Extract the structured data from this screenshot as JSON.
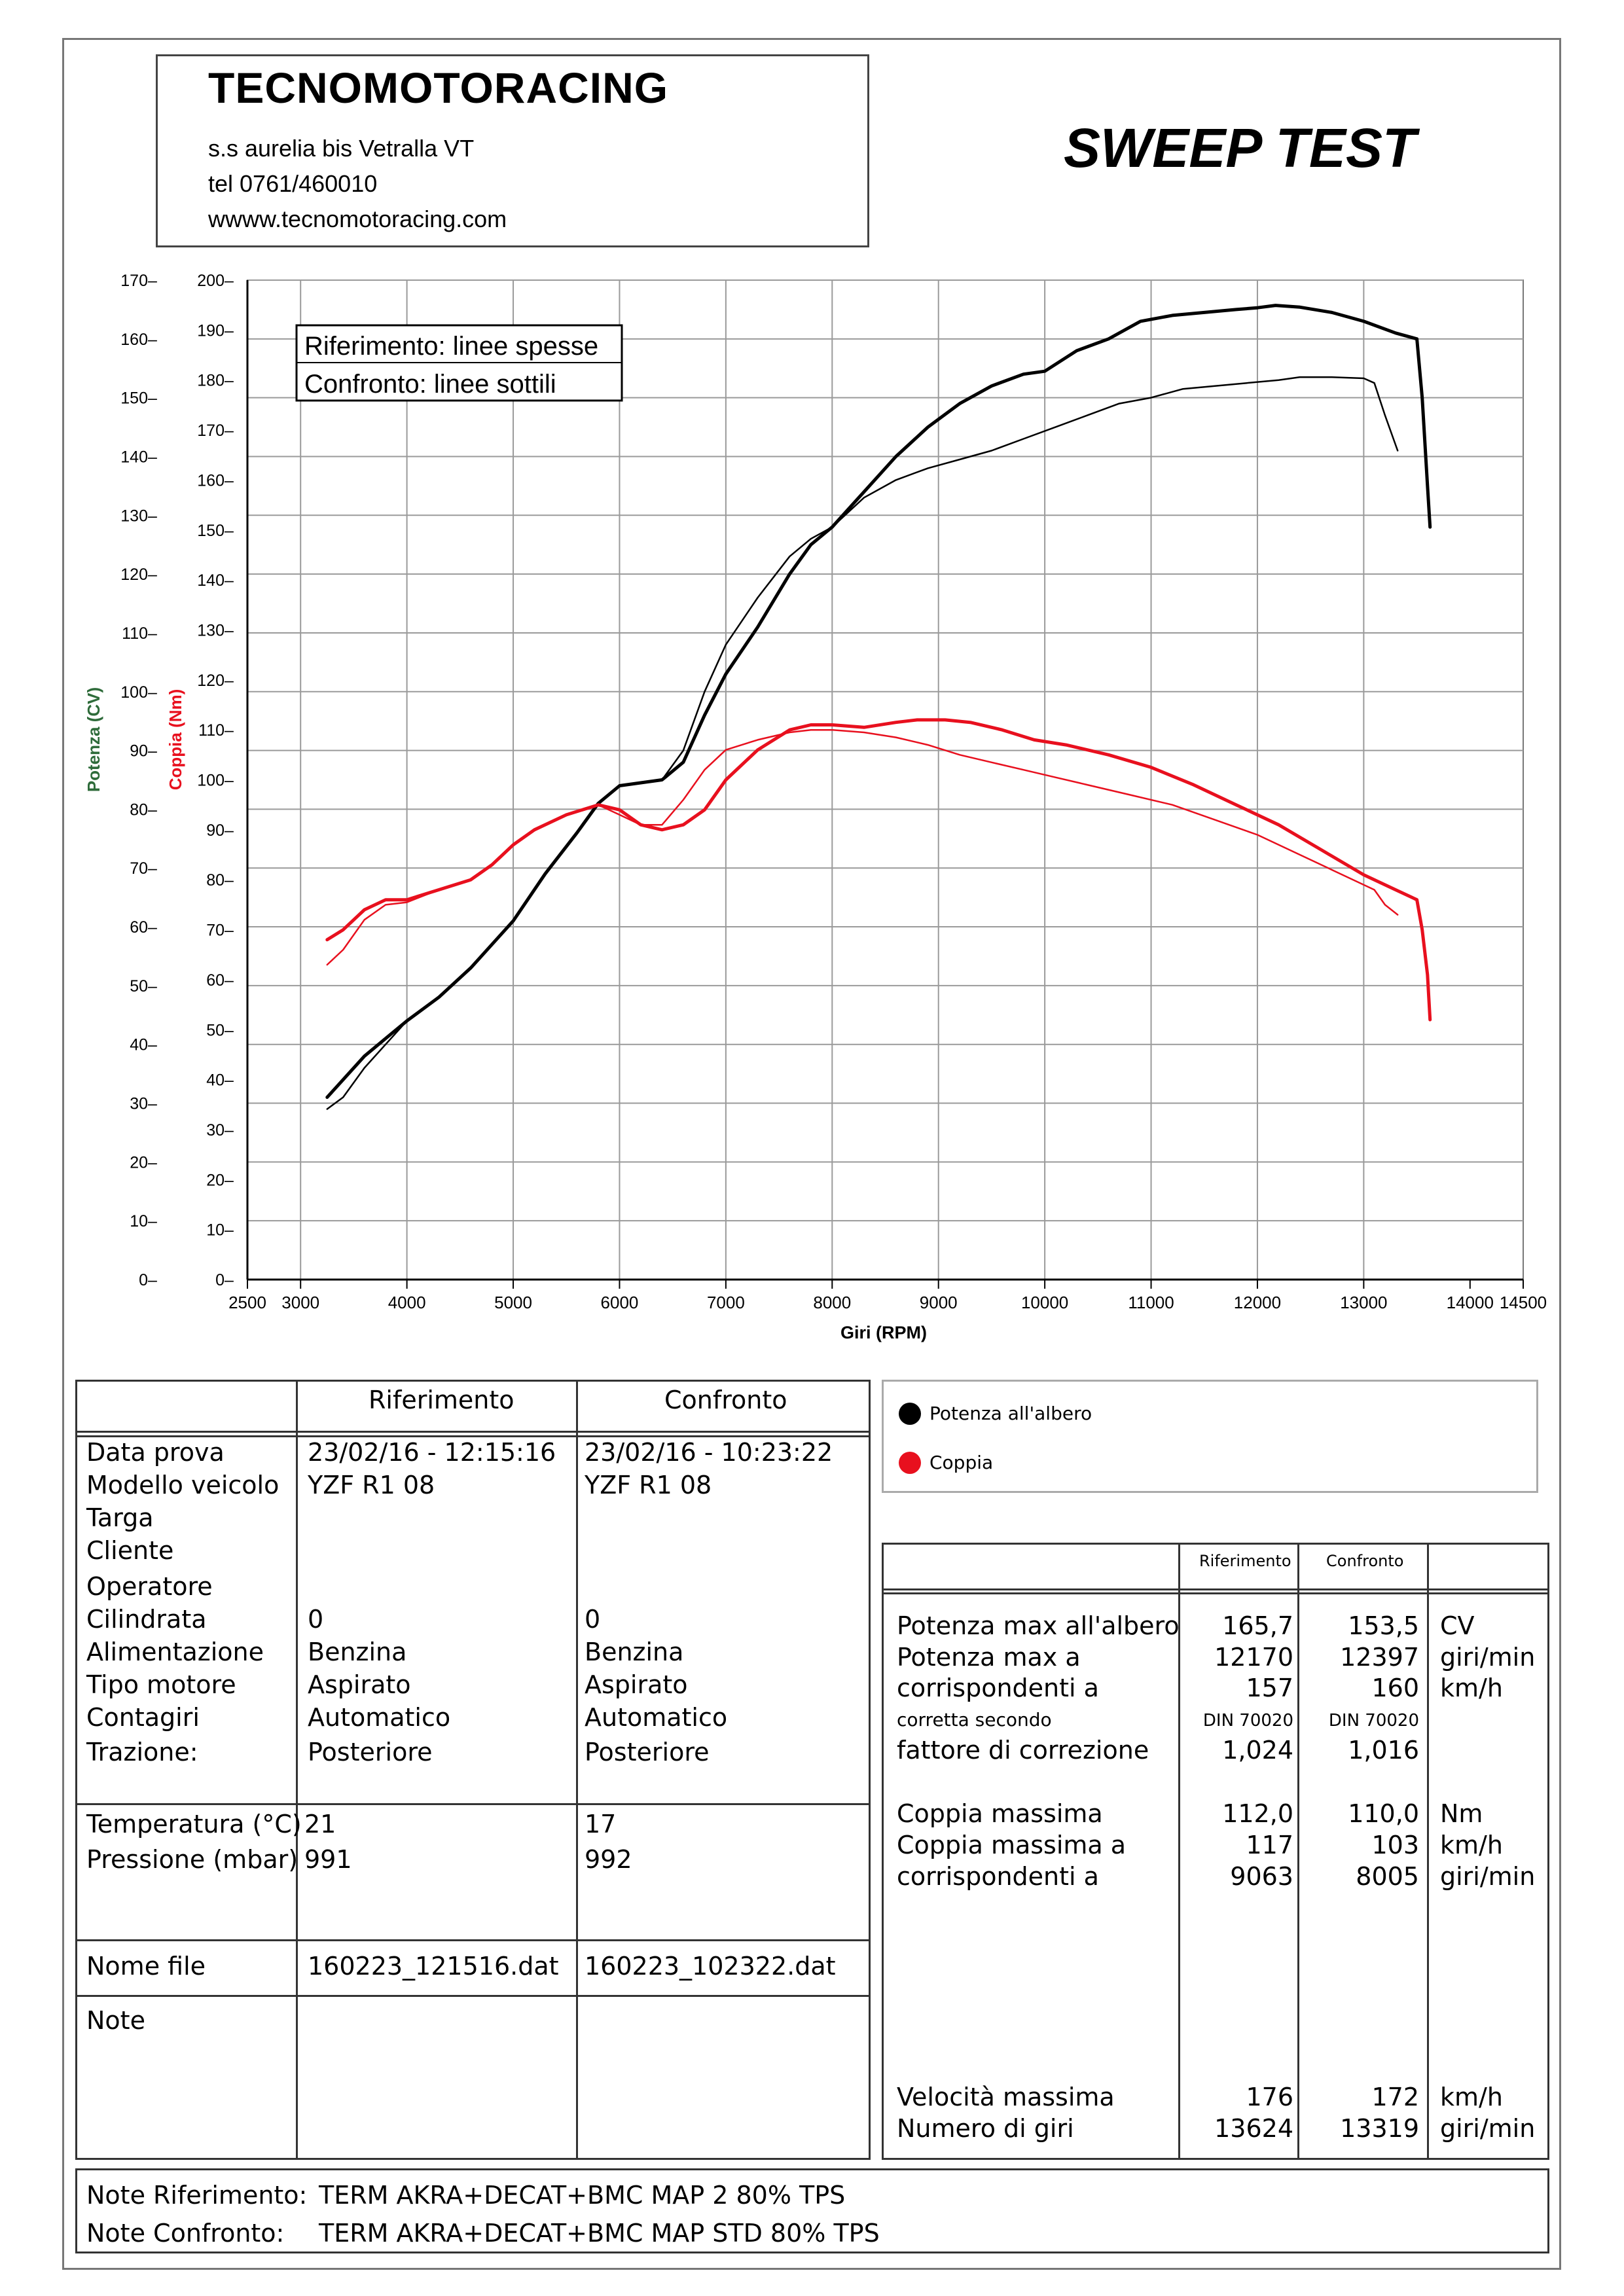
{
  "header": {
    "company": "TECNOMOTORACING",
    "address": "s.s aurelia bis  Vetralla  VT",
    "phone": "tel 0761/460010",
    "website": "wwww.tecnomotoracing.com",
    "title": "SWEEP TEST"
  },
  "chart_data": {
    "type": "line",
    "xlabel": "Giri (RPM)",
    "x_ticks": [
      2500,
      3000,
      4000,
      5000,
      6000,
      7000,
      8000,
      9000,
      10000,
      11000,
      12000,
      13000,
      14000,
      14500
    ],
    "xlim": [
      2500,
      14500
    ],
    "y_axis_power": {
      "label": "Potenza (CV)",
      "ticks": [
        0,
        10,
        20,
        30,
        40,
        50,
        60,
        70,
        80,
        90,
        100,
        110,
        120,
        130,
        140,
        150,
        160,
        170
      ],
      "ylim": [
        0,
        170
      ]
    },
    "y_axis_torque": {
      "label": "Coppia (Nm)",
      "ticks": [
        0,
        10,
        20,
        30,
        40,
        50,
        60,
        70,
        80,
        90,
        100,
        110,
        120,
        130,
        140,
        150,
        160,
        170,
        180,
        190,
        200
      ],
      "ylim": [
        0,
        200
      ]
    },
    "box_legend": [
      "Riferimento: linee spesse",
      "Confronto: linee sottili"
    ],
    "legend": [
      "Potenza all'albero",
      "Coppia"
    ],
    "grid": true,
    "series": [
      {
        "name": "Potenza all'albero",
        "run": "Riferimento",
        "axis": "power",
        "color": "#000000",
        "style": "thick",
        "x": [
          3250,
          3400,
          3600,
          3800,
          4000,
          4300,
          4600,
          5000,
          5300,
          5600,
          5800,
          6000,
          6200,
          6400,
          6600,
          6800,
          7000,
          7300,
          7600,
          7800,
          8000,
          8300,
          8600,
          8900,
          9200,
          9500,
          9800,
          10000,
          10300,
          10600,
          10900,
          11200,
          11500,
          11800,
          12000,
          12170,
          12400,
          12700,
          13000,
          13300,
          13500,
          13550,
          13600,
          13624
        ],
        "y": [
          31,
          34,
          38,
          41,
          44,
          48,
          53,
          61,
          69,
          76,
          81,
          84,
          84.5,
          85,
          88,
          96,
          103,
          111,
          120,
          125,
          128,
          134,
          140,
          145,
          149,
          152,
          154,
          154.5,
          158,
          160,
          163,
          164,
          164.5,
          165,
          165.3,
          165.7,
          165.4,
          164.5,
          163,
          161,
          160,
          150,
          135,
          128
        ]
      },
      {
        "name": "Potenza all'albero",
        "run": "Confronto",
        "axis": "power",
        "color": "#000000",
        "style": "thin",
        "x": [
          3250,
          3400,
          3600,
          3800,
          4000,
          4300,
          4600,
          5000,
          5300,
          5600,
          5800,
          6000,
          6200,
          6400,
          6600,
          6800,
          7000,
          7300,
          7600,
          7800,
          8000,
          8300,
          8600,
          8900,
          9200,
          9500,
          9800,
          10100,
          10400,
          10700,
          11000,
          11300,
          11600,
          11900,
          12200,
          12397,
          12700,
          13000,
          13100,
          13200,
          13319
        ],
        "y": [
          29,
          31,
          36,
          40,
          44,
          48,
          53,
          61,
          69,
          76,
          81,
          84,
          84.5,
          85,
          90,
          100,
          108,
          116,
          123,
          126,
          128,
          133,
          136,
          138,
          139.5,
          141,
          143,
          145,
          147,
          149,
          150,
          151.5,
          152,
          152.5,
          153,
          153.5,
          153.5,
          153.3,
          152.5,
          147,
          141
        ]
      },
      {
        "name": "Coppia",
        "run": "Riferimento",
        "axis": "torque",
        "color": "#e8101e",
        "style": "thick",
        "x": [
          3250,
          3400,
          3600,
          3800,
          4000,
          4300,
          4600,
          4800,
          5000,
          5200,
          5500,
          5800,
          6000,
          6200,
          6400,
          6600,
          6800,
          7000,
          7300,
          7600,
          7800,
          8000,
          8300,
          8600,
          8800,
          9063,
          9300,
          9600,
          9900,
          10200,
          10600,
          11000,
          11400,
          11800,
          12200,
          12600,
          13000,
          13300,
          13500,
          13550,
          13600,
          13624
        ],
        "y": [
          68,
          70,
          74,
          76,
          76,
          78,
          80,
          83,
          87,
          90,
          93,
          95,
          94,
          91,
          90,
          91,
          94,
          100,
          106,
          110,
          111,
          111,
          110.5,
          111.5,
          112,
          112,
          111.5,
          110,
          108,
          107,
          105,
          102.5,
          99,
          95,
          91,
          86,
          81,
          78,
          76,
          70,
          61,
          52
        ]
      },
      {
        "name": "Coppia",
        "run": "Confronto",
        "axis": "torque",
        "color": "#e8101e",
        "style": "thin",
        "x": [
          3250,
          3400,
          3600,
          3800,
          4000,
          4300,
          4600,
          4800,
          5000,
          5200,
          5500,
          5800,
          6000,
          6200,
          6400,
          6600,
          6800,
          7000,
          7300,
          7600,
          7800,
          8005,
          8300,
          8600,
          8900,
          9200,
          9500,
          9800,
          10100,
          10400,
          10800,
          11200,
          11600,
          12000,
          12400,
          12800,
          13100,
          13200,
          13319
        ],
        "y": [
          63,
          66,
          72,
          75,
          75.5,
          78,
          80,
          83,
          87,
          90,
          93,
          95,
          93,
          91,
          91,
          96,
          102,
          106,
          108,
          109.5,
          110,
          110,
          109.5,
          108.5,
          107,
          105,
          103.5,
          102,
          100.5,
          99,
          97,
          95,
          92,
          89,
          85,
          81,
          78,
          75,
          73
        ]
      }
    ]
  },
  "left_table": {
    "col_headers": [
      "Riferimento",
      "Confronto"
    ],
    "block1": {
      "labels": [
        "Data prova",
        "Modello veicolo",
        "Targa",
        "Cliente",
        "Operatore",
        "Cilindrata",
        "Alimentazione",
        "Tipo motore",
        "Contagiri",
        "Trazione:"
      ],
      "riferimento": [
        "23/02/16 - 12:15:16",
        "YZF R1 08",
        "",
        "",
        "",
        "0",
        "Benzina",
        "Aspirato",
        "Automatico",
        "Posteriore"
      ],
      "confronto": [
        "23/02/16 - 10:23:22",
        "YZF R1 08",
        "",
        "",
        "",
        "0",
        "Benzina",
        "Aspirato",
        "Automatico",
        "Posteriore"
      ]
    },
    "block2": {
      "labels": [
        "Temperatura (°C)",
        "Pressione (mbar)"
      ],
      "riferimento": [
        "21",
        "991"
      ],
      "confronto": [
        "17",
        "992"
      ]
    },
    "file": {
      "label": "Nome file",
      "riferimento": "160223_121516.dat",
      "confronto": "160223_102322.dat"
    },
    "note_label": "Note"
  },
  "right_table": {
    "col_headers": [
      "Riferimento",
      "Confronto"
    ],
    "rows": [
      {
        "label": "Potenza max all'albero",
        "rif": "165,7",
        "conf": "153,5",
        "unit": "CV"
      },
      {
        "label": "Potenza max a",
        "rif": "12170",
        "conf": "12397",
        "unit": "giri/min"
      },
      {
        "label": "corrispondenti a",
        "rif": "157",
        "conf": "160",
        "unit": "km/h"
      },
      {
        "label": "corretta secondo",
        "rif": "DIN 70020",
        "conf": "DIN 70020",
        "unit": "",
        "small": true
      },
      {
        "label": "fattore di correzione",
        "rif": "1,024",
        "conf": "1,016",
        "unit": ""
      },
      {
        "label": "Coppia massima",
        "rif": "112,0",
        "conf": "110,0",
        "unit": "Nm"
      },
      {
        "label": "Coppia massima a",
        "rif": "117",
        "conf": "103",
        "unit": "km/h"
      },
      {
        "label": "corrispondenti a",
        "rif": "9063",
        "conf": "8005",
        "unit": "giri/min"
      },
      {
        "label": "Velocità massima",
        "rif": "176",
        "conf": "172",
        "unit": "km/h"
      },
      {
        "label": "Numero di giri",
        "rif": "13624",
        "conf": "13319",
        "unit": "giri/min"
      }
    ]
  },
  "notes": {
    "rif_label": "Note Riferimento:",
    "rif_value": "TERM AKRA+DECAT+BMC MAP 2 80% TPS",
    "conf_label": "Note Confronto:",
    "conf_value": "TERM AKRA+DECAT+BMC MAP STD 80% TPS"
  },
  "colors": {
    "power": "#000000",
    "torque": "#e8101e",
    "power_axis_label": "#2e6b3a"
  }
}
